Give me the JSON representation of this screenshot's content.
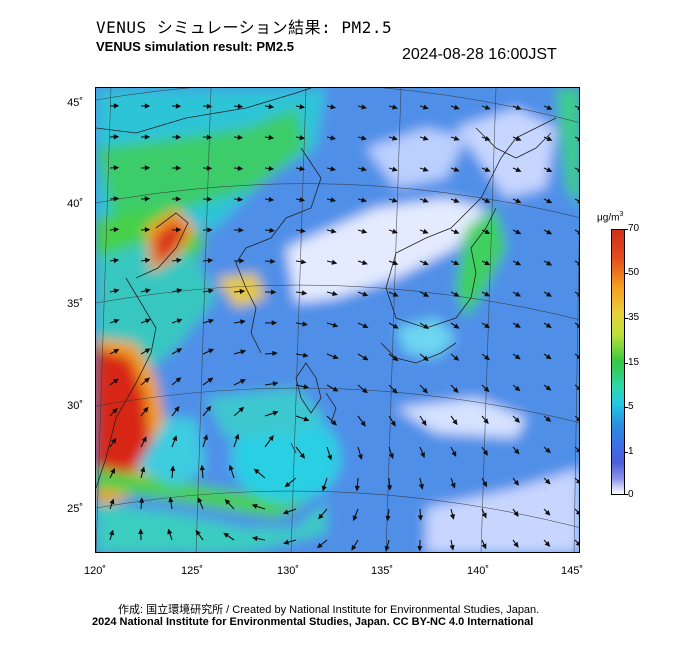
{
  "header": {
    "title_jp": "VENUS シミュレーション結果: PM2.5",
    "title_en": "VENUS simulation result: PM2.5",
    "timestamp": "2024-08-28 16:00JST"
  },
  "map": {
    "latitude_labels": [
      "45˚",
      "40˚",
      "35˚",
      "30˚",
      "25˚"
    ],
    "longitude_labels": [
      "120˚",
      "125˚",
      "130˚",
      "135˚",
      "140˚",
      "145˚"
    ],
    "colors": {
      "background_low": "#4f8fe8",
      "clean_white": "#e4ebff",
      "cyan": "#27cde0",
      "green": "#3ed04a",
      "yellow": "#e8cf2e",
      "orange": "#f08c1e",
      "red": "#d8261a"
    }
  },
  "colorbar": {
    "unit": "μg/m",
    "unit_sup": "3",
    "ticks": [
      "70",
      "50",
      "35",
      "15",
      "5",
      "1",
      "0"
    ]
  },
  "footer": {
    "credit_jp": "作成: 国立環境研究所 / Created by National Institute for Environmental Studies, Japan.",
    "copyright": "2024 National Institute for Environmental Studies, Japan. CC BY-NC 4.0 International"
  }
}
